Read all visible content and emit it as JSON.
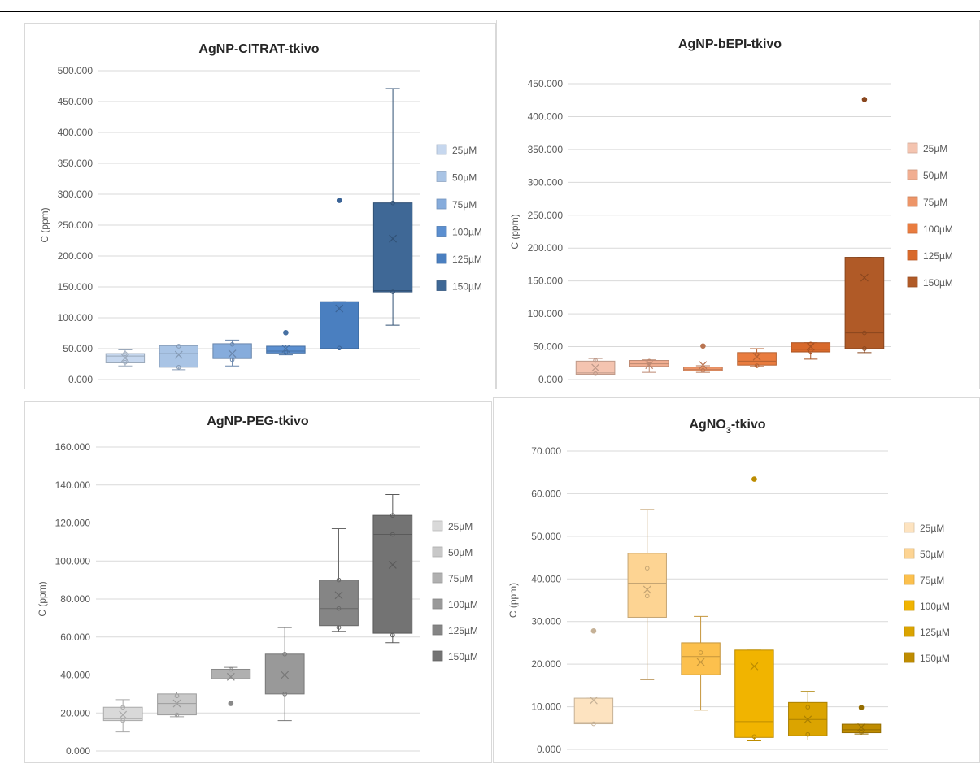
{
  "chart_data": [
    {
      "type": "box",
      "title": "AgNP-CITRAT-tkivo",
      "ylabel": "C (ppm)",
      "ylim": [
        0,
        500
      ],
      "yticks": [
        "0.000",
        "50.000",
        "100.000",
        "150.000",
        "200.000",
        "250.000",
        "300.000",
        "350.000",
        "400.000",
        "450.000",
        "500.000"
      ],
      "legend_position": "right",
      "series": [
        {
          "name": "25µM",
          "color": "#c6d7ee",
          "min": 22,
          "q1": 27,
          "median": 38,
          "q3": 42,
          "max": 48,
          "mean": 35,
          "points": [
            28,
            42
          ],
          "outliers": []
        },
        {
          "name": "50µM",
          "color": "#a9c4e5",
          "min": 16,
          "q1": 20,
          "median": 42,
          "q3": 55,
          "max": 55,
          "mean": 40,
          "points": [
            20,
            54
          ],
          "outliers": []
        },
        {
          "name": "75µM",
          "color": "#86acdc",
          "min": 22,
          "q1": 34,
          "median": 35,
          "q3": 58,
          "max": 64,
          "mean": 42,
          "points": [
            32,
            57
          ],
          "outliers": []
        },
        {
          "name": "100µM",
          "color": "#5b8fd0",
          "min": 40,
          "q1": 43,
          "median": 46,
          "q3": 54,
          "max": 56,
          "mean": 50,
          "points": [
            44
          ],
          "outliers": [
            76
          ]
        },
        {
          "name": "125µM",
          "color": "#4a7fc0",
          "min": 50,
          "q1": 50,
          "median": 56,
          "q3": 126,
          "max": 126,
          "mean": 115,
          "points": [
            51
          ],
          "outliers": [
            290
          ]
        },
        {
          "name": "150µM",
          "color": "#3f6896",
          "min": 88,
          "q1": 142,
          "median": 144,
          "q3": 286,
          "max": 471,
          "mean": 228,
          "points": [
            142,
            286
          ],
          "outliers": []
        }
      ]
    },
    {
      "type": "box",
      "title": "AgNP-bEPI-tkivo",
      "ylabel": "C (ppm)",
      "ylim": [
        0,
        450
      ],
      "yticks": [
        "0.000",
        "50.000",
        "100.000",
        "150.000",
        "200.000",
        "250.000",
        "300.000",
        "350.000",
        "400.000",
        "450.000"
      ],
      "legend_position": "right",
      "series": [
        {
          "name": "25µM",
          "color": "#f4c4b0",
          "min": 8,
          "q1": 8,
          "median": 10,
          "q3": 28,
          "max": 32,
          "mean": 18,
          "points": [
            9,
            29
          ],
          "outliers": []
        },
        {
          "name": "50µM",
          "color": "#f1ae91",
          "min": 11,
          "q1": 20,
          "median": 24,
          "q3": 29,
          "max": 30,
          "mean": 22,
          "points": [
            22,
            28
          ],
          "outliers": []
        },
        {
          "name": "75µM",
          "color": "#ed9568",
          "min": 11,
          "q1": 13,
          "median": 15,
          "q3": 19,
          "max": 21,
          "mean": 22,
          "points": [
            14
          ],
          "outliers": [
            51
          ]
        },
        {
          "name": "100µM",
          "color": "#e97c3f",
          "min": 20,
          "q1": 22,
          "median": 28,
          "q3": 41,
          "max": 47,
          "mean": 35,
          "points": [
            21,
            38
          ],
          "outliers": []
        },
        {
          "name": "125µM",
          "color": "#d8692b",
          "min": 31,
          "q1": 42,
          "median": 46,
          "q3": 56,
          "max": 56,
          "mean": 50,
          "points": [
            43,
            54
          ],
          "outliers": []
        },
        {
          "name": "150µM",
          "color": "#b05a27",
          "min": 41,
          "q1": 47,
          "median": 71,
          "q3": 186,
          "max": 186,
          "mean": 155,
          "points": [
            47,
            71
          ],
          "outliers": [
            426
          ]
        }
      ]
    },
    {
      "type": "box",
      "title": "AgNP-PEG-tkivo",
      "ylabel": "C (ppm)",
      "ylim": [
        0,
        160
      ],
      "yticks": [
        "0.000",
        "20.000",
        "40.000",
        "60.000",
        "80.000",
        "100.000",
        "120.000",
        "140.000",
        "160.000"
      ],
      "legend_position": "right",
      "series": [
        {
          "name": "25µM",
          "color": "#d9d9d9",
          "min": 10,
          "q1": 16,
          "median": 17,
          "q3": 23,
          "max": 27,
          "mean": 19,
          "points": [
            16,
            23
          ],
          "outliers": []
        },
        {
          "name": "50µM",
          "color": "#c8c8c8",
          "min": 18,
          "q1": 19,
          "median": 25,
          "q3": 30,
          "max": 31,
          "mean": 25,
          "points": [
            19,
            29
          ],
          "outliers": []
        },
        {
          "name": "75µM",
          "color": "#b0b0b0",
          "min": 38,
          "q1": 38,
          "median": 43,
          "q3": 43,
          "max": 44,
          "mean": 39,
          "points": [
            43
          ],
          "outliers": [
            25
          ]
        },
        {
          "name": "100µM",
          "color": "#999999",
          "min": 16,
          "q1": 30,
          "median": 40,
          "q3": 51,
          "max": 65,
          "mean": 40,
          "points": [
            30,
            51
          ],
          "outliers": []
        },
        {
          "name": "125µM",
          "color": "#858585",
          "min": 63,
          "q1": 66,
          "median": 75,
          "q3": 90,
          "max": 117,
          "mean": 82,
          "points": [
            65,
            75,
            90
          ],
          "outliers": []
        },
        {
          "name": "150µM",
          "color": "#737373",
          "min": 57,
          "q1": 62,
          "median": 114,
          "q3": 124,
          "max": 135,
          "mean": 98,
          "points": [
            61,
            114,
            124
          ],
          "outliers": []
        }
      ]
    },
    {
      "type": "box",
      "title": "AgNO",
      "title_sub": "3",
      "title_suffix": "-tkivo",
      "ylabel": "C (ppm)",
      "ylim": [
        0,
        70
      ],
      "yticks": [
        "0.000",
        "10.000",
        "20.000",
        "30.000",
        "40.000",
        "50.000",
        "60.000",
        "70.000"
      ],
      "legend_position": "right",
      "series": [
        {
          "name": "25µM",
          "color": "#fde3c0",
          "min": 6,
          "q1": 6,
          "median": 6.3,
          "q3": 12,
          "max": 12,
          "mean": 11.5,
          "points": [
            6
          ],
          "outliers": [
            27.8
          ]
        },
        {
          "name": "50µM",
          "color": "#fdd493",
          "min": 16.3,
          "q1": 31,
          "median": 39,
          "q3": 46,
          "max": 56.3,
          "mean": 37.5,
          "points": [
            36,
            42.5
          ],
          "outliers": []
        },
        {
          "name": "75µM",
          "color": "#fcc04d",
          "min": 9.2,
          "q1": 17.5,
          "median": 21.8,
          "q3": 25,
          "max": 31.2,
          "mean": 20.5,
          "points": [
            22.7
          ],
          "outliers": []
        },
        {
          "name": "100µM",
          "color": "#f1b400",
          "min": 2,
          "q1": 2.8,
          "median": 6.5,
          "q3": 23.3,
          "max": 23.3,
          "mean": 19.5,
          "points": [
            3
          ],
          "outliers": [
            63.4
          ]
        },
        {
          "name": "125µM",
          "color": "#dba400",
          "min": 2.2,
          "q1": 3.2,
          "median": 7,
          "q3": 11,
          "max": 13.6,
          "mean": 7,
          "points": [
            3.5,
            9.9
          ],
          "outliers": []
        },
        {
          "name": "150µM",
          "color": "#bf8c00",
          "min": 3.6,
          "q1": 3.9,
          "median": 4.6,
          "q3": 5.9,
          "max": 5.9,
          "mean": 5.2,
          "points": [
            4
          ],
          "outliers": [
            9.8
          ]
        }
      ]
    }
  ]
}
